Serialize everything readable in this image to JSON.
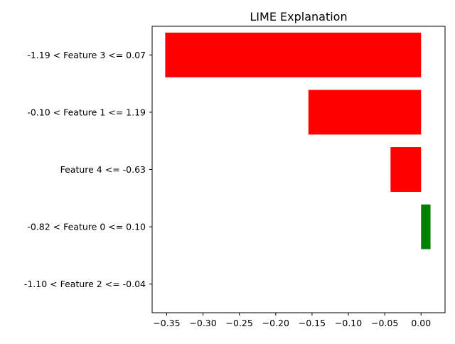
{
  "chart_data": {
    "type": "bar",
    "orientation": "horizontal",
    "title": "LIME Explanation",
    "xlabel": "",
    "ylabel": "",
    "categories": [
      "-1.19 < Feature 3 <= 0.07",
      "-0.10 < Feature 1 <= 1.19",
      "Feature 4 <= -0.63",
      "-0.82 < Feature 0 <= 0.10",
      "-1.10 < Feature 2 <= -0.04"
    ],
    "values": [
      -0.352,
      -0.155,
      -0.042,
      0.013,
      0.0
    ],
    "xlim": [
      -0.37,
      0.033
    ],
    "xticks": [
      -0.35,
      -0.3,
      -0.25,
      -0.2,
      -0.15,
      -0.1,
      -0.05,
      0.0
    ],
    "xtick_labels": [
      "−0.35",
      "−0.30",
      "−0.25",
      "−0.20",
      "−0.15",
      "−0.10",
      "−0.05",
      "0.00"
    ],
    "colors": {
      "negative": "#ff0000",
      "positive": "#008000"
    },
    "grid": false,
    "legend": "none"
  }
}
